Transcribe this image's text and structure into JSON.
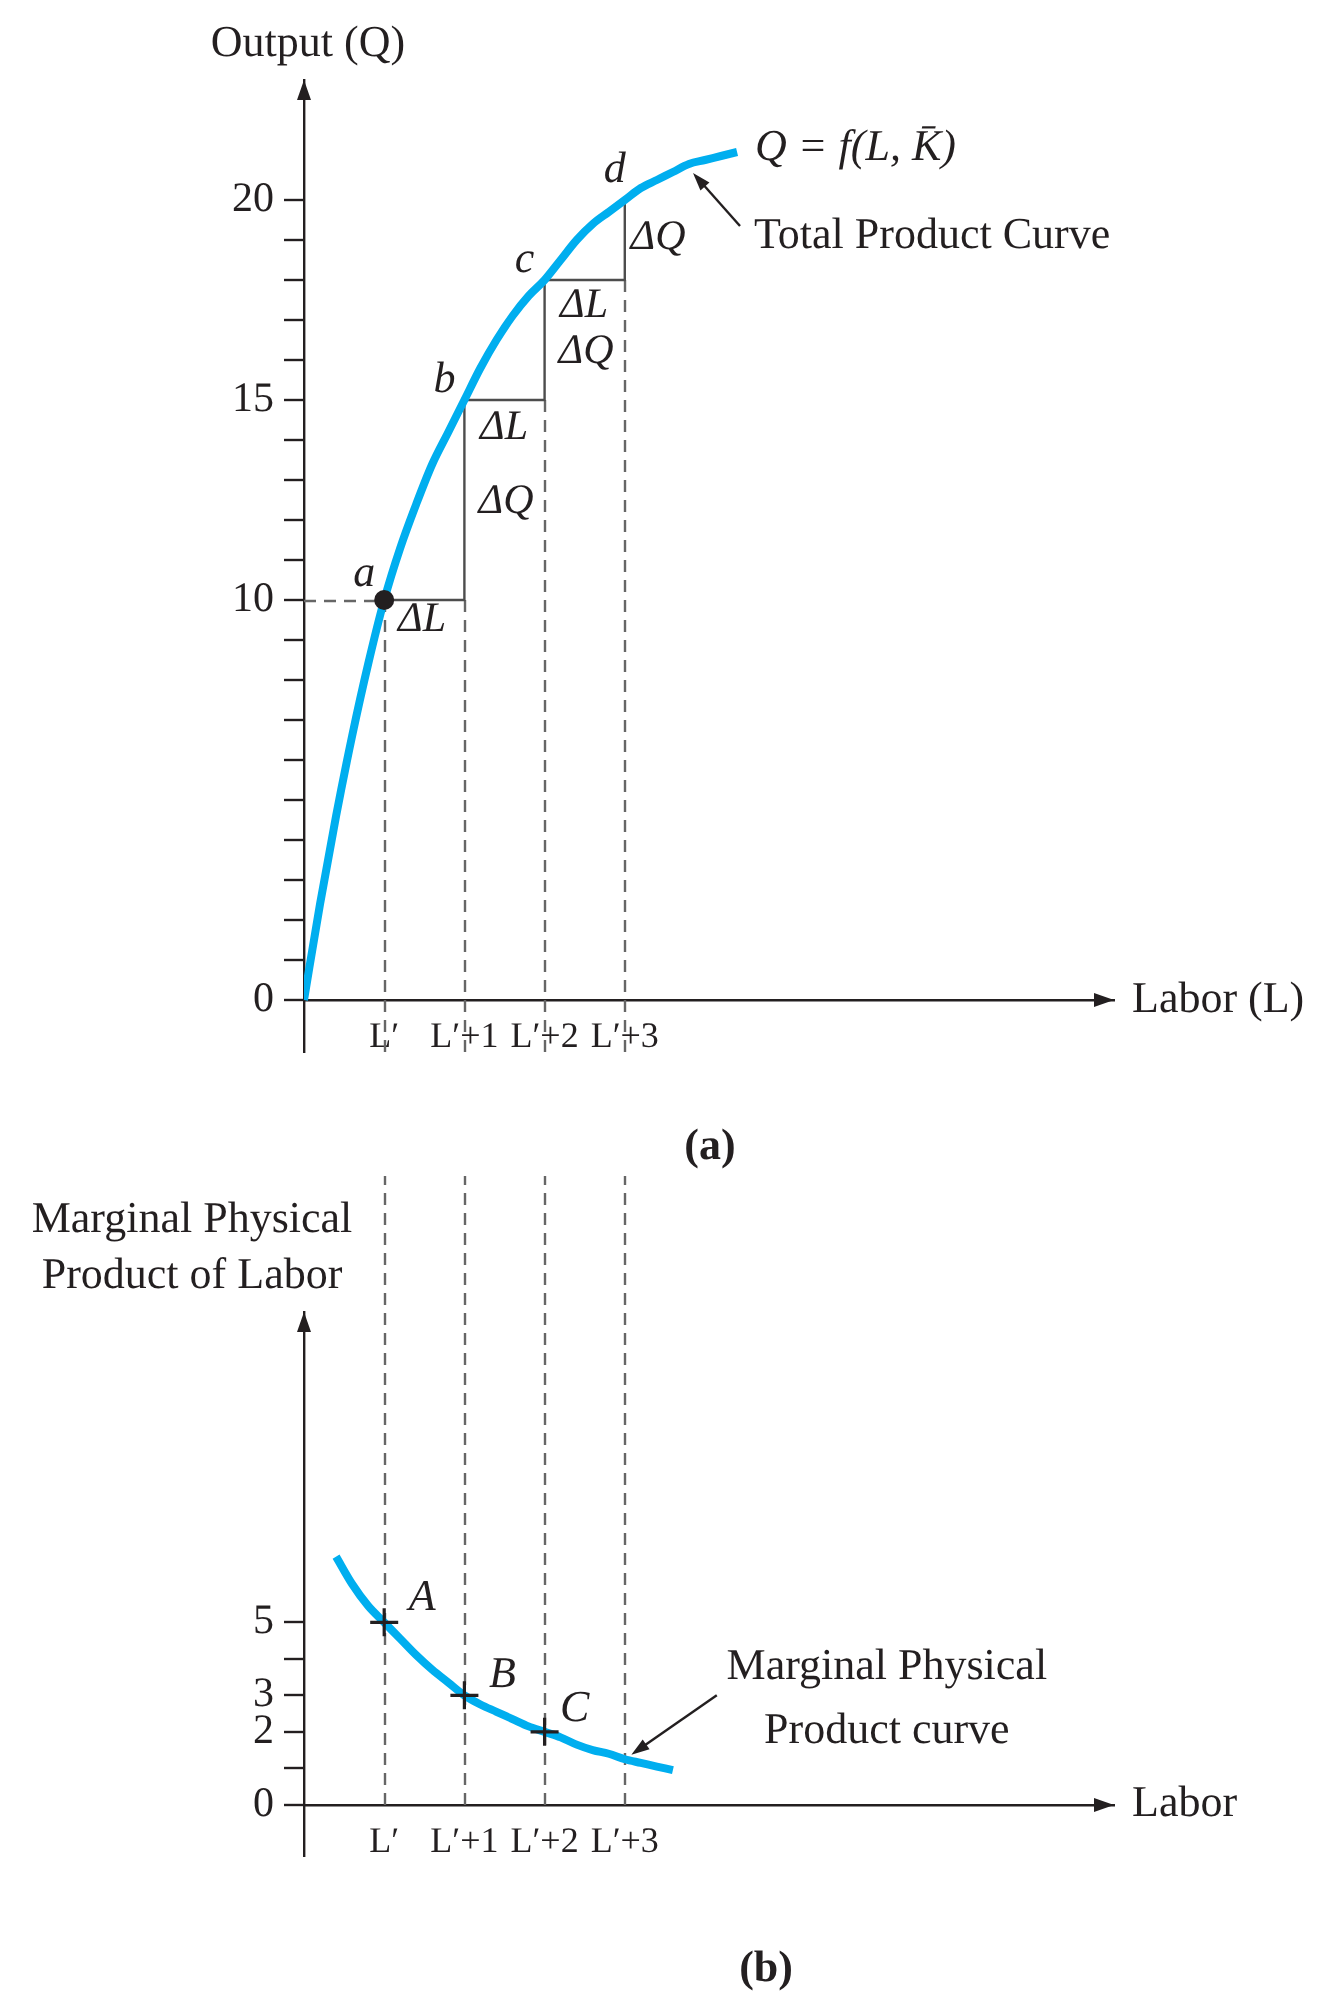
{
  "chart_data": [
    {
      "type": "line",
      "ylabel": "Output (Q)",
      "xlabel": "Labor (L)",
      "categories": [
        null,
        null,
        null,
        null,
        null,
        "L′",
        null,
        null,
        null,
        null,
        "L′+1",
        null,
        null,
        null,
        null,
        "L′+2",
        null,
        null,
        null,
        null,
        "L′+3",
        null,
        null,
        null,
        null,
        null,
        null,
        null,
        null,
        null,
        null,
        null,
        null,
        null,
        null,
        null,
        null,
        null,
        null,
        null,
        null,
        null,
        null,
        null,
        null,
        null,
        null,
        null,
        null,
        null,
        null
      ],
      "ylim": [
        -1.3,
        23
      ],
      "yticks": [
        0,
        {
          "value": 1,
          "label": null
        },
        {
          "value": 2,
          "label": null
        },
        {
          "value": 3,
          "label": null
        },
        {
          "value": 4,
          "label": null
        },
        {
          "value": 5,
          "label": null
        },
        {
          "value": 6,
          "label": null
        },
        {
          "value": 7,
          "label": null
        },
        {
          "value": 8,
          "label": null
        },
        {
          "value": 9,
          "label": null
        },
        10,
        {
          "value": 11,
          "label": null
        },
        {
          "value": 12,
          "label": null
        },
        {
          "value": 13,
          "label": null
        },
        {
          "value": 14,
          "label": null
        },
        15,
        {
          "value": 16,
          "label": null
        },
        {
          "value": 17,
          "label": null
        },
        {
          "value": 18,
          "label": null
        },
        {
          "value": 19,
          "label": null
        },
        20
      ],
      "grid": false,
      "legend": false,
      "marker": "none",
      "series": [
        {
          "name": "Q = f(L, K̄)",
          "color": "#00aeef",
          "values": [
            0,
            2.4,
            4.6,
            6.6,
            8.4,
            10,
            11.3,
            12.4,
            13.4,
            14.2,
            15,
            15.8,
            16.5,
            17.1,
            17.6,
            18,
            18.5,
            19,
            19.4,
            19.7,
            20,
            20.3,
            20.5,
            20.7,
            20.9,
            21,
            21.1,
            21.2,
            null,
            null,
            null,
            null,
            null,
            null,
            null,
            null,
            null,
            null,
            null,
            null,
            null,
            null,
            null,
            null,
            null,
            null,
            null,
            null,
            null,
            null,
            null
          ]
        },
        {
          "type": "step",
          "color": "#4d4d4d",
          "values": [
            null,
            null,
            null,
            null,
            null,
            10,
            10,
            10,
            10,
            10,
            15,
            15,
            15,
            15,
            15,
            18,
            18,
            18,
            18,
            18,
            20,
            null,
            null,
            null,
            null,
            null,
            null,
            null,
            null,
            null,
            null,
            null,
            null,
            null,
            null,
            null,
            null,
            null,
            null,
            null,
            null,
            null,
            null,
            null,
            null,
            null,
            null,
            null,
            null,
            null,
            null
          ]
        },
        {
          "type": "scatter",
          "color": "#231f20",
          "marker": "circle",
          "values": [
            null,
            null,
            null,
            null,
            null,
            10,
            null,
            null,
            null,
            null,
            null,
            null,
            null,
            null,
            null,
            null,
            null,
            null,
            null,
            null,
            null,
            null,
            null,
            null,
            null,
            null,
            null,
            null,
            null,
            null,
            null,
            null,
            null,
            null,
            null,
            null,
            null,
            null,
            null,
            null,
            null,
            null,
            null,
            null,
            null,
            null,
            null,
            null,
            null,
            null,
            null
          ]
        }
      ],
      "ref_lines": [
        {
          "axis": "x",
          "value": "L′",
          "line_style": "dashed",
          "color": "#666666"
        },
        {
          "axis": "x",
          "value": "L′+1",
          "line_style": "dashed",
          "color": "#666666"
        },
        {
          "axis": "x",
          "value": "L′+2",
          "line_style": "dashed",
          "color": "#666666"
        },
        {
          "axis": "x",
          "value": "L′+3",
          "line_style": "dashed",
          "color": "#666666"
        },
        {
          "axis": "y",
          "value": 10,
          "line_style": "dashed",
          "color": "#666666"
        }
      ],
      "annotations": [
        {
          "text": "a",
          "x": "L′",
          "y": 10
        },
        {
          "text": "b",
          "x": "L′+1",
          "y": 15
        },
        {
          "text": "c",
          "x": "L′+2",
          "y": 18
        },
        {
          "text": "d",
          "x": "L′+3",
          "y": 20
        },
        "ΔL",
        "ΔL",
        "ΔQ",
        "ΔL",
        "ΔQ",
        "ΔQ",
        "Total Product Curve",
        "(a)"
      ]
    },
    {
      "type": "line",
      "ylabel": "Marginal Physical Product of Labor",
      "xlabel": "Labor",
      "categories": [
        null,
        null,
        null,
        null,
        null,
        "L′",
        null,
        null,
        null,
        null,
        "L′+1",
        null,
        null,
        null,
        null,
        "L′+2",
        null,
        null,
        null,
        null,
        "L′+3",
        null,
        null,
        null,
        null,
        null,
        null,
        null,
        null,
        null,
        null,
        null,
        null,
        null,
        null,
        null,
        null,
        null,
        null,
        null,
        null,
        null,
        null,
        null,
        null,
        null,
        null,
        null,
        null,
        null,
        null
      ],
      "ylim": [
        -1.4,
        13.5
      ],
      "yticks": [
        0,
        {
          "value": 1,
          "label": null
        },
        2,
        3,
        {
          "value": 4,
          "label": null
        },
        5
      ],
      "grid": false,
      "legend": false,
      "marker": "none",
      "series": [
        {
          "color": "#00aeef",
          "values": [
            null,
            null,
            6.8,
            6.05,
            5.45,
            5,
            4.55,
            4.1,
            3.7,
            3.35,
            3,
            2.75,
            2.55,
            2.35,
            2.15,
            2,
            1.85,
            1.65,
            1.5,
            1.4,
            1.25,
            1.15,
            1.05,
            0.95,
            null,
            null,
            null,
            null,
            null,
            null,
            null,
            null,
            null,
            null,
            null,
            null,
            null,
            null,
            null,
            null,
            null,
            null,
            null,
            null,
            null,
            null,
            null,
            null,
            null,
            null,
            null
          ]
        },
        {
          "type": "scatter",
          "color": "#231f20",
          "marker": "cross",
          "values": [
            null,
            null,
            null,
            null,
            null,
            5,
            null,
            null,
            null,
            null,
            3,
            null,
            null,
            null,
            null,
            2,
            null,
            null,
            null,
            null,
            null,
            null,
            null,
            null,
            null,
            null,
            null,
            null,
            null,
            null,
            null,
            null,
            null,
            null,
            null,
            null,
            null,
            null,
            null,
            null,
            null,
            null,
            null,
            null,
            null,
            null,
            null,
            null,
            null,
            null,
            null
          ]
        }
      ],
      "ref_lines": [
        {
          "axis": "x",
          "value": "L′",
          "line_style": "dashed",
          "color": "#666666"
        },
        {
          "axis": "x",
          "value": "L′+1",
          "line_style": "dashed",
          "color": "#666666"
        },
        {
          "axis": "x",
          "value": "L′+2",
          "line_style": "dashed",
          "color": "#666666"
        },
        {
          "axis": "x",
          "value": "L′+3",
          "line_style": "dashed",
          "color": "#666666"
        }
      ],
      "annotations": [
        {
          "text": "A",
          "x": "L′",
          "y": 5
        },
        {
          "text": "B",
          "x": "L′+1",
          "y": 3
        },
        {
          "text": "C",
          "x": "L′+2",
          "y": 2
        },
        {
          "text": "Marginal Physical Product curve",
          "x": "L′+3",
          "y": 1.25
        },
        "(b)"
      ]
    }
  ]
}
